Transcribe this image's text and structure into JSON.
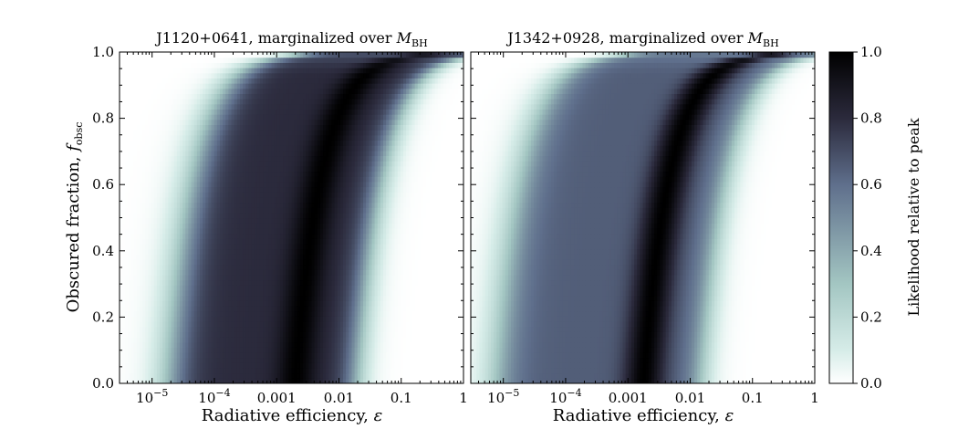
{
  "chart_data": [
    {
      "type": "heatmap",
      "title": "J1120+0641, marginalized over ",
      "title_math": "M",
      "title_sub": "BH",
      "xlabel": "Radiative efficiency, ",
      "xlabel_math": "ε",
      "ylabel": "Obscured fraction, ",
      "ylabel_math": "f",
      "ylabel_sub": "obsc",
      "x_scale": "log",
      "xlim": [
        3e-06,
        1
      ],
      "ylim": [
        0,
        1
      ],
      "x_ticks": [
        {
          "value": 1e-05,
          "base": "10",
          "exp": "−5"
        },
        {
          "value": 0.0001,
          "base": "10",
          "exp": "−4"
        },
        {
          "value": 0.001,
          "label": "0.001"
        },
        {
          "value": 0.01,
          "label": "0.01"
        },
        {
          "value": 0.1,
          "label": "0.1"
        },
        {
          "value": 1,
          "label": "1"
        }
      ],
      "y_ticks": [
        "0.0",
        "0.2",
        "0.4",
        "0.6",
        "0.8",
        "1.0"
      ],
      "y_tick_values": [
        0,
        0.2,
        0.4,
        0.6,
        0.8,
        1.0
      ],
      "ridge": {
        "log_eps_start": -4.7,
        "log_eps_peak": -2.7,
        "log_eps_end": -1.75,
        "plateau_likelihood": 0.8,
        "peak_likelihood": 1.0
      }
    },
    {
      "type": "heatmap",
      "title": "J1342+0928, marginalized over ",
      "title_math": "M",
      "title_sub": "BH",
      "xlabel": "Radiative efficiency, ",
      "xlabel_math": "ε",
      "x_scale": "log",
      "xlim": [
        3e-06,
        1
      ],
      "ylim": [
        0,
        1
      ],
      "x_ticks": [
        {
          "value": 1e-05,
          "base": "10",
          "exp": "−5"
        },
        {
          "value": 0.0001,
          "base": "10",
          "exp": "−4"
        },
        {
          "value": 0.001,
          "label": "0.001"
        },
        {
          "value": 0.01,
          "label": "0.01"
        },
        {
          "value": 0.1,
          "label": "0.1"
        },
        {
          "value": 1,
          "label": "1"
        }
      ],
      "y_tick_values": [
        0,
        0.2,
        0.4,
        0.6,
        0.8,
        1.0
      ],
      "ridge": {
        "log_eps_start": -5.1,
        "log_eps_peak": -2.75,
        "log_eps_end": -1.85,
        "plateau_likelihood": 0.65,
        "peak_likelihood": 1.0
      }
    }
  ],
  "colorbar": {
    "label": "Likelihood relative to peak",
    "range": [
      0,
      1
    ],
    "ticks": [
      "0.0",
      "0.2",
      "0.4",
      "0.6",
      "0.8",
      "1.0"
    ],
    "tick_values": [
      0,
      0.2,
      0.4,
      0.6,
      0.8,
      1.0
    ],
    "colormap": "bone_r",
    "stops": [
      "#ffffff",
      "#d6ece8",
      "#a3c6c2",
      "#5f6f8c",
      "#2b2a3c",
      "#000000"
    ]
  }
}
